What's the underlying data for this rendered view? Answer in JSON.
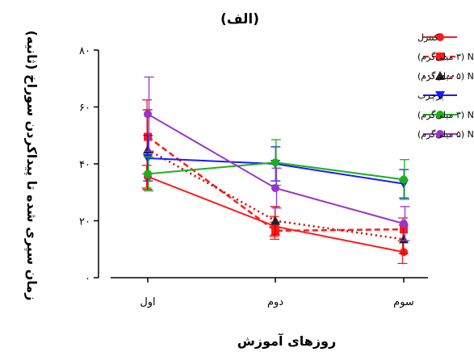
{
  "chart_data": {
    "type": "line",
    "title": "(الف)",
    "xlabel": "روزهای آموزش",
    "ylabel": "زمان سپری شده تا پیداکردن سوراخ (ثانیه)",
    "categories": [
      "اول",
      "دوم",
      "سوم"
    ],
    "ylim": [
      0,
      80
    ],
    "yticks": [
      0,
      20,
      40,
      60,
      80
    ],
    "ytick_labels": [
      "۰",
      "۲۰",
      "۴۰",
      "۶۰",
      "۸۰"
    ],
    "grid": false,
    "legend_position": "top-right",
    "series": [
      {
        "name": "کنترل",
        "color": "#ff1a1a",
        "dash": "solid",
        "marker": "circle",
        "values": [
          35.5,
          18,
          9
        ],
        "errors": [
          4,
          3.5,
          4
        ]
      },
      {
        "name": "کنترل NaHS (۳ میلی‌گرم)",
        "color": "#ff1a1a",
        "dash": "dashed",
        "marker": "square",
        "values": [
          49.5,
          16.5,
          17
        ],
        "errors": [
          13,
          3,
          4
        ]
      },
      {
        "name": "کنترل NaHS (۵ میلی‌گرم)",
        "color": "#cc0000",
        "dash": "dotted",
        "marker": "triangle",
        "values": [
          45,
          20,
          13.5
        ],
        "errors": [
          14,
          5,
          5
        ]
      },
      {
        "name": "پرچرب",
        "color": "#1a1aff",
        "dash": "solid",
        "marker": "triangle-down",
        "values": [
          42,
          40,
          33
        ],
        "errors": [
          8,
          6,
          5
        ]
      },
      {
        "name": "پرچرب NaHS (۳ میلی‌گرم)",
        "color": "#19b319",
        "dash": "solid",
        "marker": "circle",
        "values": [
          36.5,
          40.5,
          34.5
        ],
        "errors": [
          6,
          8,
          7
        ]
      },
      {
        "name": "پرچرب NaHS (۵ میلی‌گرم)",
        "color": "#9933cc",
        "dash": "solid",
        "marker": "circle",
        "values": [
          57.5,
          31.5,
          19
        ],
        "errors": [
          13,
          7,
          6
        ]
      }
    ]
  }
}
